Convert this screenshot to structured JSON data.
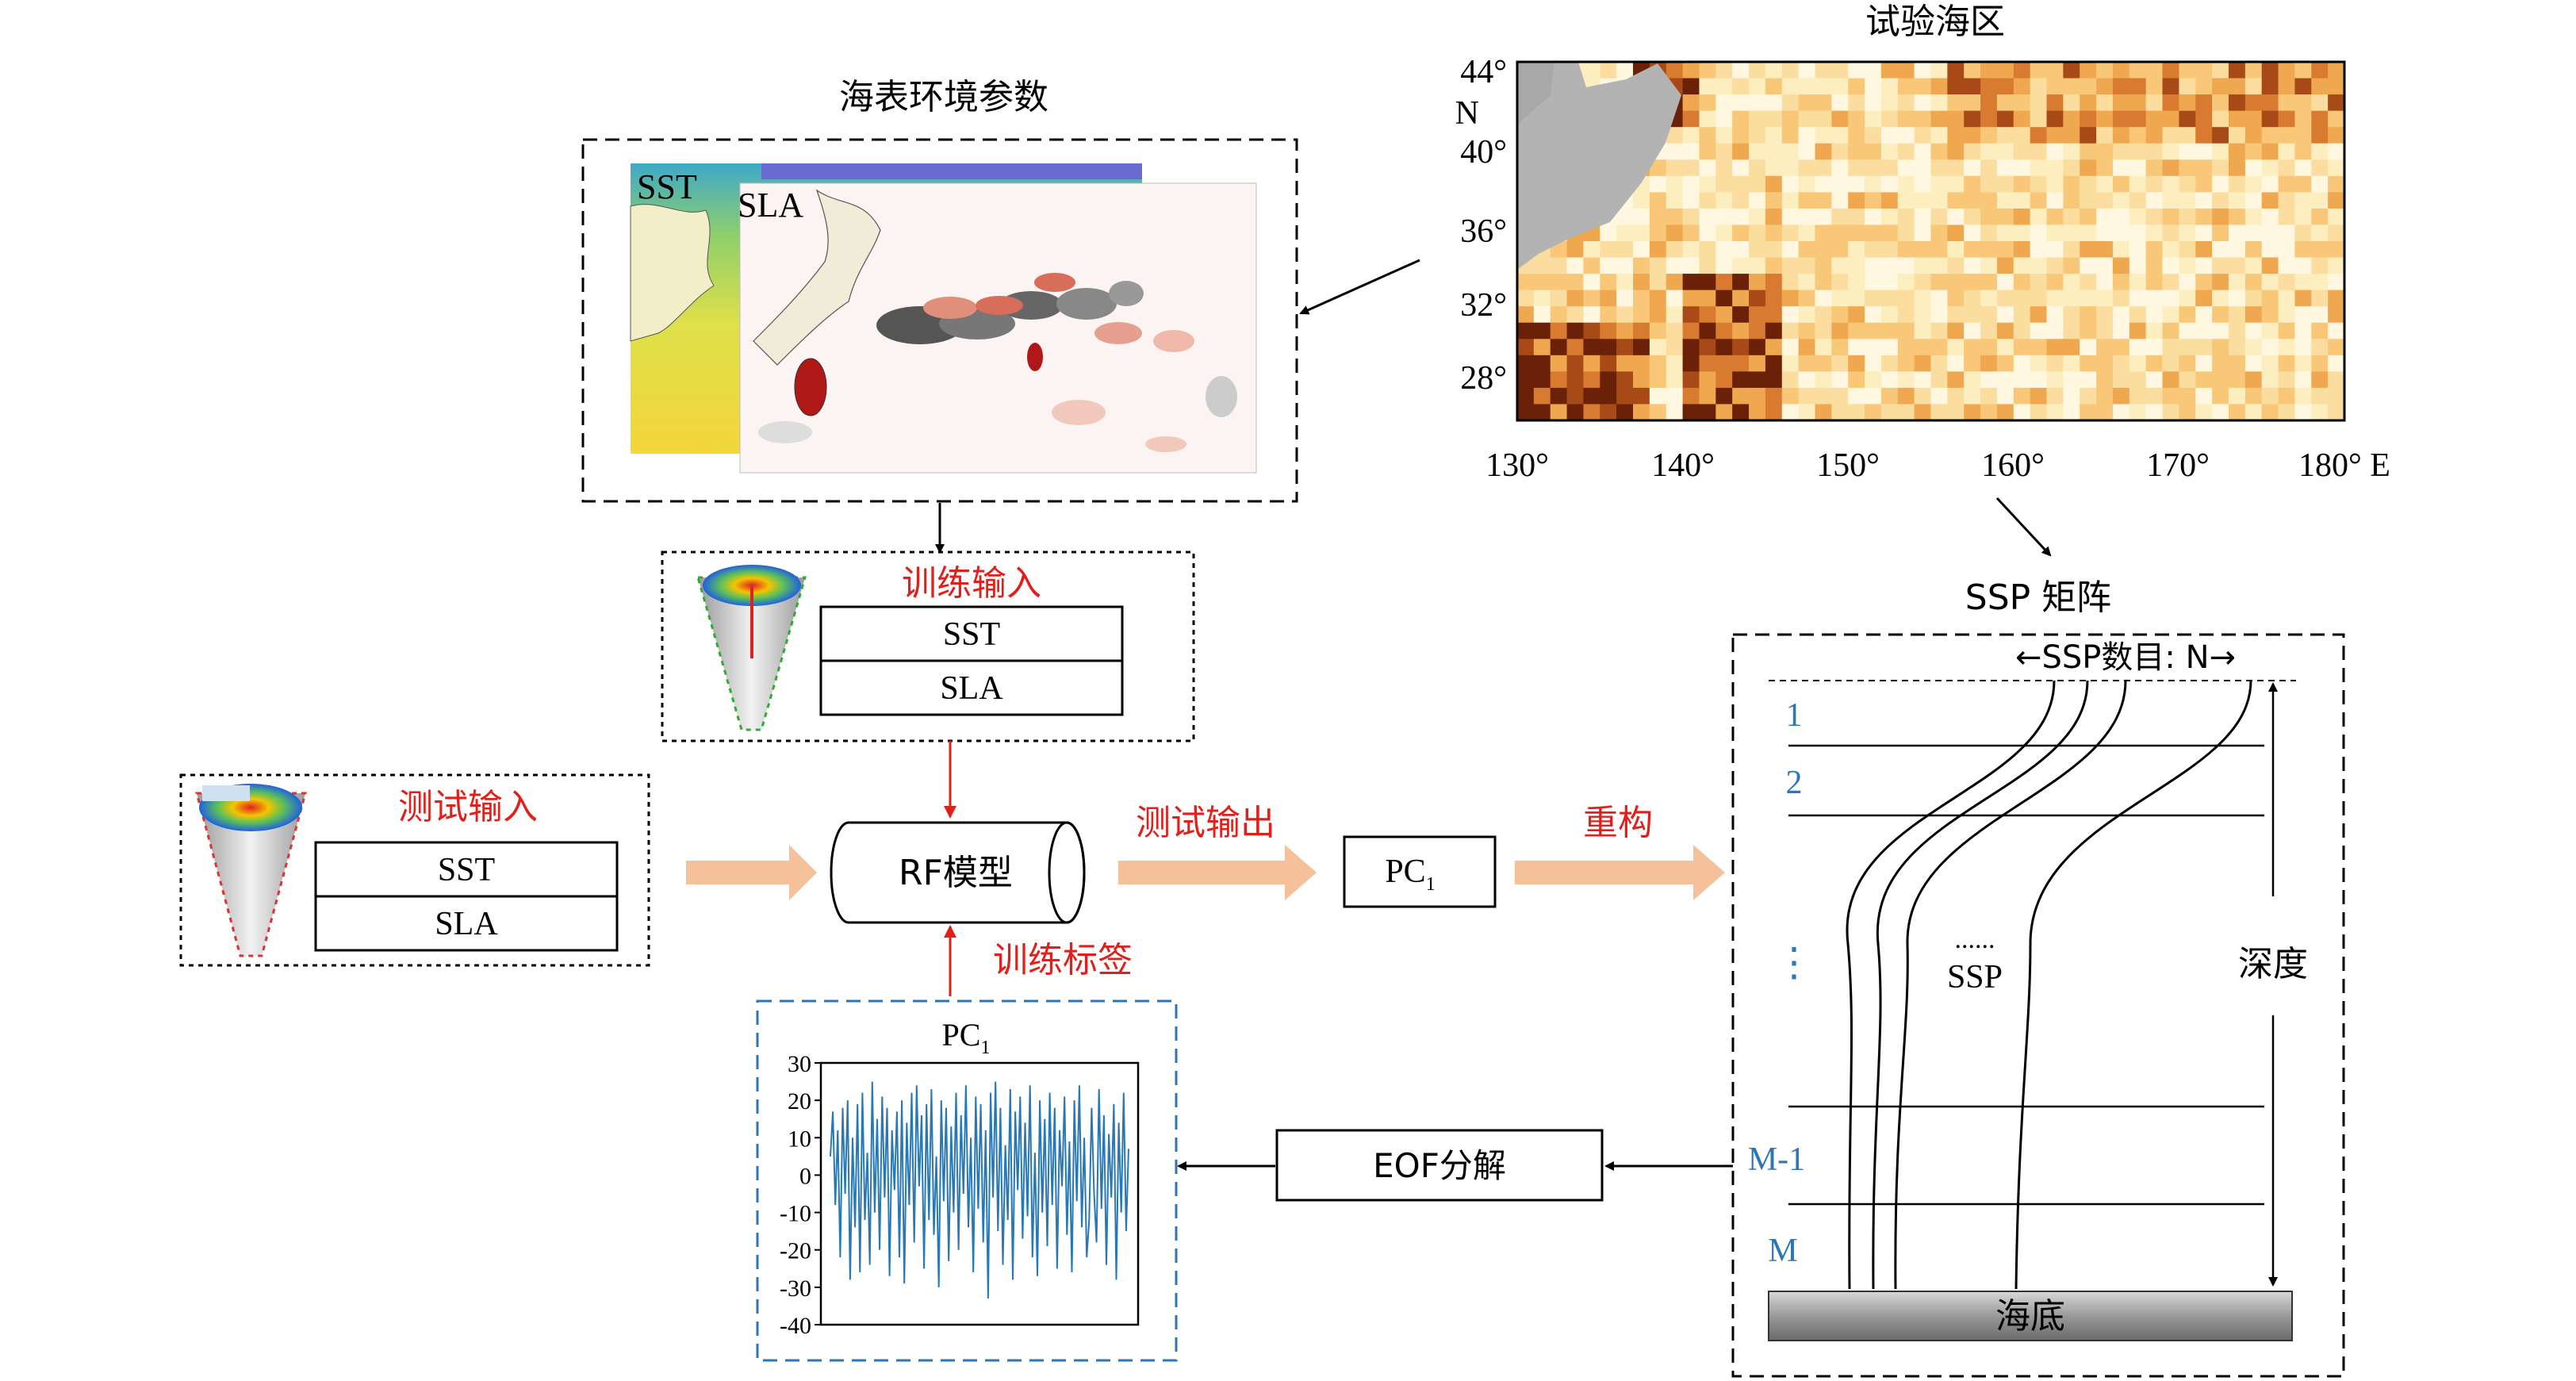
{
  "figure": {
    "env_title": "海表环境参数",
    "sst_label": "SST",
    "sla_label": "SLA",
    "area_title": "试验海区",
    "map": {
      "lat_ticks": [
        "44°",
        "40°",
        "36°",
        "32°",
        "28°"
      ],
      "lat_unit": "N",
      "lon_ticks": [
        "130°",
        "140°",
        "150°",
        "160°",
        "170°",
        "180° E"
      ]
    },
    "train_input": {
      "label": "训练输入",
      "row1": "SST",
      "row2": "SLA"
    },
    "test_input": {
      "label": "测试输入",
      "row1": "SST",
      "row2": "SLA"
    },
    "model_label": "RF模型",
    "test_output_label": "测试输出",
    "pc_box": {
      "main": "PC",
      "sub": "1"
    },
    "reconstruct_label": "重构",
    "train_label": "训练标签",
    "eof_label": "EOF分解",
    "ssp": {
      "title": "SSP 矩阵",
      "count_label": "←SSP数目: N→",
      "rows": [
        "1",
        "2",
        "M-1",
        "M"
      ],
      "dots": "⋮",
      "ssp_dots": "......",
      "ssp_label": "SSP",
      "depth_label": "深度",
      "seabed_label": "海底"
    },
    "pc_chart_title": {
      "main": "PC",
      "sub": "1"
    }
  },
  "colors": {
    "red_label": "#e0201a",
    "blue_label": "#2e75b6",
    "orange_arrow": "#f5c19b",
    "dashed_blue": "#2e75b6",
    "series": "#2878b5"
  },
  "chart_data": {
    "type": "line",
    "title": "PC1",
    "xlabel": "",
    "ylabel": "",
    "ylim": [
      -40,
      30
    ],
    "yticks": [
      30,
      20,
      10,
      0,
      -10,
      -20,
      -30,
      -40
    ],
    "series": [
      {
        "values": [
          5,
          17,
          -8,
          12,
          -22,
          18,
          -5,
          20,
          -28,
          10,
          -14,
          19,
          -26,
          22,
          -12,
          6,
          -24,
          25,
          -10,
          15,
          -20,
          21,
          -6,
          18,
          -27,
          12,
          -4,
          17,
          -22,
          20,
          -29,
          14,
          -8,
          22,
          -18,
          24,
          -3,
          16,
          -25,
          19,
          -12,
          23,
          -16,
          5,
          -30,
          20,
          -7,
          18,
          -23,
          13,
          -10,
          22,
          -20,
          16,
          -5,
          24,
          -14,
          10,
          -26,
          21,
          -9,
          19,
          -18,
          12,
          -33,
          22,
          -6,
          25,
          -15,
          18,
          -24,
          8,
          -12,
          23,
          -28,
          17,
          -4,
          21,
          -17,
          14,
          -11,
          24,
          -22,
          6,
          -27,
          20,
          -10,
          15,
          -19,
          22,
          -8,
          18,
          -25,
          12,
          -3,
          21,
          -16,
          9,
          -26,
          20,
          -7,
          24,
          -14,
          10,
          -22,
          -12,
          18,
          -5,
          -18,
          23,
          -9,
          16,
          -24,
          11,
          -6,
          19,
          -28,
          14,
          -10,
          22,
          -15,
          7
        ]
      }
    ]
  }
}
